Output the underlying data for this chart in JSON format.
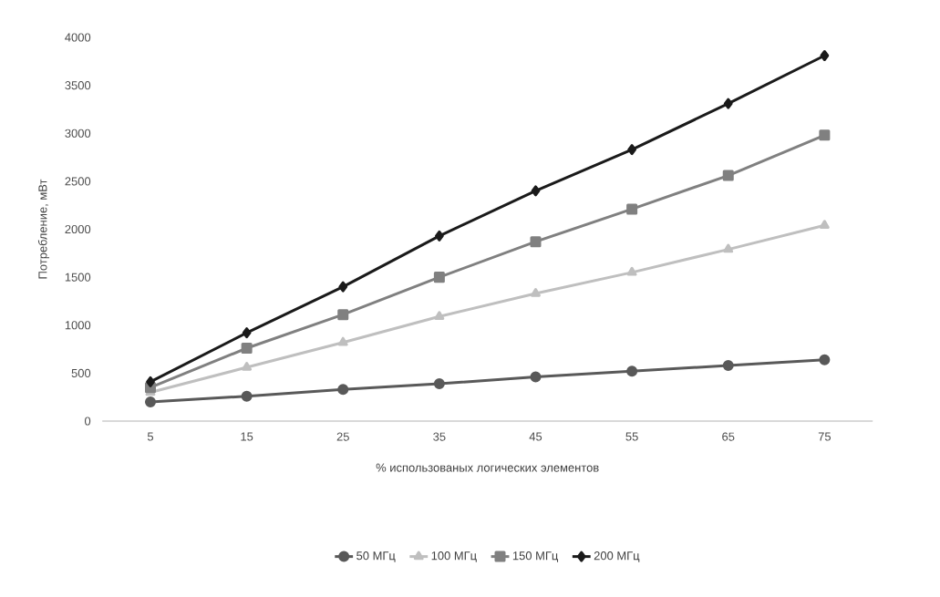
{
  "chart_data": {
    "type": "line",
    "xlabel": "% использованых логических элементов",
    "ylabel": "Потребление, мВт",
    "categories": [
      "5",
      "15",
      "25",
      "35",
      "45",
      "55",
      "65",
      "75"
    ],
    "ylim": [
      0,
      4000
    ],
    "yticks": [
      0,
      500,
      1000,
      1500,
      2000,
      2500,
      3000,
      3500,
      4000
    ],
    "grid": false,
    "legend": "bottom",
    "line_style": "solid",
    "series": [
      {
        "name": "50 МГц",
        "color": "#595959",
        "marker": "circle",
        "values": [
          200,
          260,
          330,
          390,
          460,
          520,
          580,
          640
        ]
      },
      {
        "name": "100 МГц",
        "color": "#bfbfbf",
        "marker": "triangle",
        "values": [
          300,
          560,
          820,
          1090,
          1330,
          1550,
          1790,
          2040
        ]
      },
      {
        "name": "150 МГц",
        "color": "#808080",
        "marker": "square",
        "values": [
          350,
          760,
          1110,
          1500,
          1870,
          2210,
          2560,
          2980
        ]
      },
      {
        "name": "200 МГц",
        "color": "#1a1a1a",
        "marker": "diamond",
        "values": [
          410,
          920,
          1400,
          1930,
          2400,
          2830,
          3310,
          3810
        ]
      }
    ]
  }
}
